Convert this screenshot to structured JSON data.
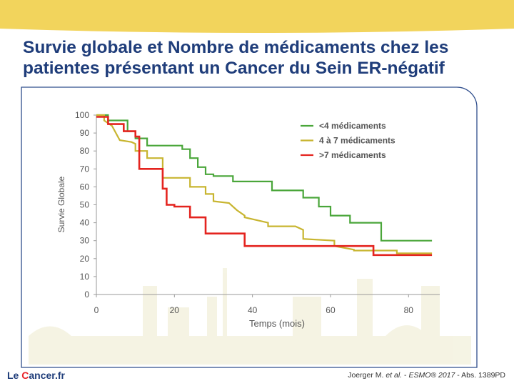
{
  "slide": {
    "title_line1": "Survie globale et Nombre de médicaments chez les",
    "title_line2": "patientes présentant un Cancer du Sein ER-négatif"
  },
  "footer": {
    "logo_prefix": "Le ",
    "logo_accent": "C",
    "logo_suffix": "ancer.fr",
    "ref_author": "Joerger M. ",
    "ref_etal": "et al.",
    "ref_sep1": " - ",
    "ref_congress": "ESMO® 2017",
    "ref_rest": " - Abs. 1389PD"
  },
  "colors": {
    "title": "#1f3d7a",
    "band": "#f2d45c",
    "frame": "#2e4d8c",
    "green": "#4aa63a",
    "yellow": "#c8b530",
    "red": "#e4241f"
  },
  "chart_data": {
    "type": "line",
    "step": true,
    "xlabel": "Temps (mois)",
    "ylabel": "Survie Globale",
    "xlim": [
      0,
      88
    ],
    "ylim": [
      0,
      100
    ],
    "xticks": [
      0,
      20,
      40,
      60,
      80
    ],
    "yticks": [
      0,
      10,
      20,
      30,
      40,
      50,
      60,
      70,
      80,
      90,
      100
    ],
    "grid": false,
    "legend_position": "top-right",
    "series": [
      {
        "name": "<4 médicaments",
        "color": "#4aa63a",
        "x": [
          0,
          3,
          3,
          8,
          8,
          10,
          10,
          13,
          13,
          22,
          22,
          24,
          24,
          26,
          26,
          28,
          28,
          30,
          30,
          35,
          35,
          45,
          45,
          53,
          53,
          57,
          57,
          60,
          60,
          65,
          65,
          73,
          73,
          86
        ],
        "y": [
          100,
          100,
          97,
          97,
          91,
          91,
          87,
          87,
          83,
          83,
          81,
          81,
          76,
          76,
          71,
          71,
          67,
          67,
          66,
          66,
          63,
          63,
          58,
          58,
          54,
          54,
          49,
          49,
          44,
          44,
          40,
          40,
          30,
          30
        ]
      },
      {
        "name": "4 à 7 médicaments",
        "color": "#c8b530",
        "x": [
          0,
          2,
          2,
          4,
          6,
          9,
          10,
          10,
          13,
          13,
          17,
          17,
          24,
          24,
          28,
          28,
          30,
          30,
          34,
          36,
          38,
          38,
          44,
          44,
          51,
          53,
          53,
          61,
          61,
          66,
          66,
          77,
          77,
          86
        ],
        "y": [
          100,
          100,
          97,
          94,
          86,
          85,
          84,
          80,
          80,
          76,
          76,
          65,
          65,
          60,
          60,
          56,
          56,
          52,
          51,
          47,
          44,
          43,
          40,
          38,
          38,
          36,
          31,
          30,
          27,
          25,
          24.5,
          24.5,
          23,
          23
        ]
      },
      {
        "name": ">7 médicaments",
        "color": "#e4241f",
        "x": [
          0,
          3,
          3,
          7,
          7,
          10,
          10,
          11,
          11,
          17,
          17,
          18,
          18,
          20,
          20,
          24,
          24,
          28,
          28,
          38,
          38,
          71,
          71,
          86
        ],
        "y": [
          99,
          99,
          95,
          95,
          91,
          91,
          88,
          88,
          70,
          70,
          59,
          59,
          50,
          50,
          49,
          49,
          43,
          43,
          34,
          34,
          27,
          27,
          22,
          22
        ]
      }
    ]
  }
}
